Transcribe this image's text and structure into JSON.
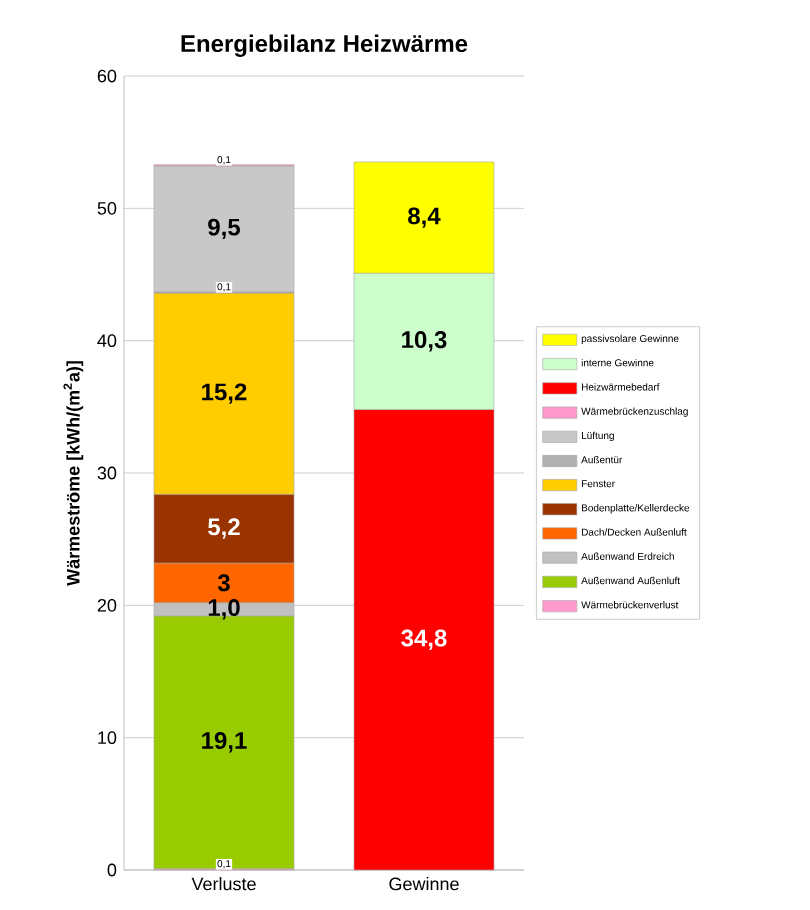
{
  "chart_data": {
    "type": "bar",
    "stacked": true,
    "title": "Energiebilanz Heizwärme",
    "ylabel": "Wärmeströme [kWh/(m$^{2}$a)]",
    "categories": [
      "Verluste",
      "Gewinne"
    ],
    "ylim": [
      0,
      60
    ],
    "yticks": [
      0,
      10,
      20,
      30,
      40,
      50,
      60
    ],
    "grid": "y",
    "legend": "right",
    "series": [
      {
        "name": "Wärmebrückenverlust",
        "color": "#ff99cc",
        "values": [
          0.1,
          null
        ],
        "value_labels": [
          "0,1",
          null
        ]
      },
      {
        "name": "Außenwand Außenluft",
        "color": "#99cc00",
        "values": [
          19.1,
          null
        ],
        "value_labels": [
          "19,1",
          null
        ]
      },
      {
        "name": "Außenwand Erdreich",
        "color": "#c0c0c0",
        "values": [
          1.0,
          null
        ],
        "value_labels": [
          "1,0",
          null
        ]
      },
      {
        "name": "Dach/Decken Außenluft",
        "color": "#ff6600",
        "values": [
          3,
          null
        ],
        "value_labels": [
          "3",
          null
        ]
      },
      {
        "name": "Bodenplatte/Kellerdecke",
        "color": "#993300",
        "values": [
          5.2,
          null
        ],
        "value_labels": [
          "5,2",
          null
        ]
      },
      {
        "name": "Fenster",
        "color": "#ffcc00",
        "values": [
          15.2,
          null
        ],
        "value_labels": [
          "15,2",
          null
        ]
      },
      {
        "name": "Außentür",
        "color": "#b0b0b0",
        "values": [
          0.1,
          null
        ],
        "value_labels": [
          "0,1",
          null
        ]
      },
      {
        "name": "Lüftung",
        "color": "#c8c8c8",
        "values": [
          9.5,
          null
        ],
        "value_labels": [
          "9,5",
          null
        ]
      },
      {
        "name": "Wärmebrückenzuschlag",
        "color": "#ff99cc",
        "values": [
          0.1,
          null
        ],
        "value_labels": [
          "0,1",
          null
        ]
      },
      {
        "name": "Heizwärmebedarf",
        "color": "#ff0000",
        "values": [
          null,
          34.8
        ],
        "value_labels": [
          null,
          "34,8"
        ]
      },
      {
        "name": "interne Gewinne",
        "color": "#ccffcc",
        "values": [
          null,
          10.3
        ],
        "value_labels": [
          null,
          "10,3"
        ]
      },
      {
        "name": "passivsolare Gewinne",
        "color": "#ffff00",
        "values": [
          null,
          8.4
        ],
        "value_labels": [
          null,
          "8,4"
        ]
      }
    ]
  }
}
